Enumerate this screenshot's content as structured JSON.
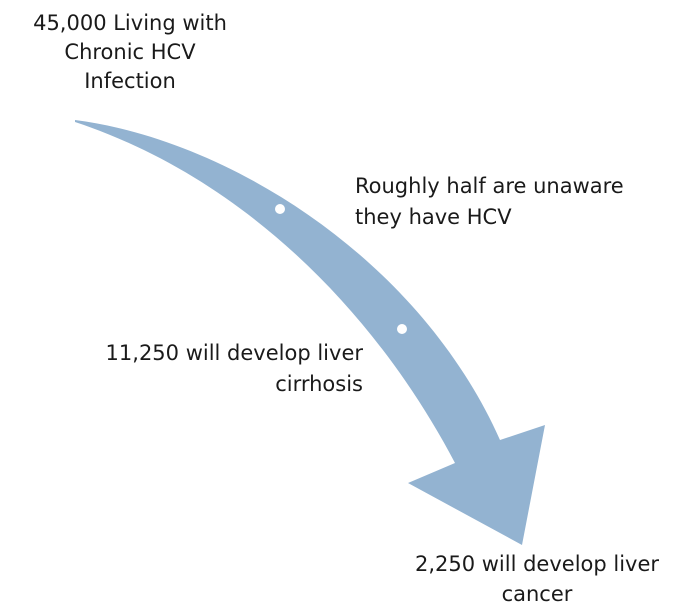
{
  "nodes": [
    {
      "lines": [
        "45,000 Living with",
        "Chronic HCV",
        "Infection"
      ]
    },
    {
      "lines": [
        "Roughly half are unaware",
        "they have HCV"
      ]
    },
    {
      "lines": [
        "11,250 will develop liver",
        "cirrhosis"
      ]
    },
    {
      "lines": [
        "2,250 will develop liver",
        "cancer"
      ]
    }
  ]
}
